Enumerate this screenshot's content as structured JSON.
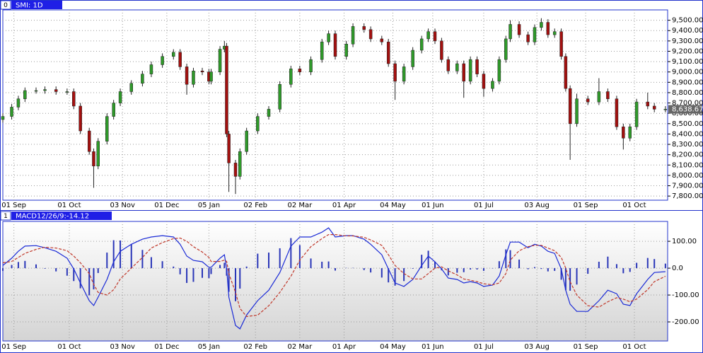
{
  "chart_data": [
    {
      "type": "candlestick",
      "panel": "0",
      "title": "SMI: 1D",
      "x": [
        0,
        4,
        7,
        10,
        15,
        19,
        24,
        29,
        32,
        35,
        39,
        41,
        43,
        47,
        50,
        53,
        58,
        63,
        67,
        72,
        77,
        80,
        83,
        86,
        90,
        93,
        94,
        98,
        100,
        101,
        102,
        105,
        107,
        110,
        115,
        120,
        125,
        130,
        134,
        139,
        144,
        147,
        150,
        155,
        158,
        163,
        166,
        171,
        174,
        177,
        181,
        185,
        189,
        192,
        195,
        198,
        201,
        205,
        208,
        211,
        214,
        217,
        221,
        224,
        227,
        229,
        233,
        237,
        240,
        243,
        246,
        249,
        252,
        254,
        256,
        259,
        264,
        269,
        273,
        277,
        280,
        283,
        286,
        291,
        294,
        299
      ],
      "open": [
        8540,
        8570,
        8660,
        8740,
        8820,
        8820,
        8830,
        8810,
        8810,
        8670,
        8430,
        8230,
        8090,
        8330,
        8570,
        8700,
        8810,
        8890,
        8980,
        9070,
        9150,
        9190,
        9050,
        8880,
        9010,
        9000,
        8910,
        9000,
        9220,
        9250,
        8400,
        8120,
        7990,
        8230,
        8430,
        8570,
        8640,
        8880,
        9030,
        9000,
        9120,
        9290,
        9370,
        9150,
        9270,
        9440,
        9410,
        9320,
        9290,
        9080,
        8910,
        9050,
        9210,
        9320,
        9390,
        9300,
        9120,
        9010,
        9080,
        8910,
        9120,
        8980,
        8840,
        8910,
        9120,
        9320,
        9460,
        9360,
        9290,
        9430,
        9480,
        9360,
        9390,
        9150,
        8840,
        8500,
        8740,
        8710,
        8810,
        8740,
        8470,
        8360,
        8470,
        8710,
        8670,
        8640
      ],
      "high": [
        8600,
        8690,
        8770,
        8850,
        8850,
        8860,
        8860,
        8840,
        8840,
        8700,
        8460,
        8260,
        8360,
        8600,
        8730,
        8840,
        8920,
        9010,
        9100,
        9180,
        9220,
        9220,
        9080,
        9040,
        9040,
        9030,
        9030,
        9250,
        9300,
        9280,
        8430,
        8150,
        8260,
        8460,
        8600,
        8670,
        8910,
        9060,
        9060,
        9150,
        9320,
        9400,
        9400,
        9300,
        9470,
        9470,
        9440,
        9350,
        9320,
        9110,
        9080,
        9240,
        9350,
        9420,
        9420,
        9330,
        9150,
        9110,
        9110,
        9150,
        9150,
        9010,
        8940,
        9150,
        9350,
        9500,
        9490,
        9390,
        9460,
        9520,
        9510,
        9420,
        9420,
        9180,
        8870,
        8790,
        8770,
        8940,
        8840,
        8770,
        8500,
        8500,
        8740,
        8800,
        8700,
        8670
      ],
      "low": [
        8510,
        8540,
        8630,
        8710,
        8790,
        8790,
        8780,
        8780,
        8640,
        8400,
        8200,
        7880,
        8060,
        8300,
        8540,
        8670,
        8780,
        8860,
        8950,
        9040,
        9120,
        9020,
        8780,
        8850,
        8970,
        8880,
        8880,
        8970,
        9190,
        8370,
        7840,
        7820,
        7960,
        8200,
        8400,
        8540,
        8610,
        8850,
        8970,
        8970,
        9090,
        9260,
        9120,
        9120,
        9240,
        9380,
        9290,
        9260,
        9050,
        8730,
        8880,
        9020,
        9180,
        9290,
        9270,
        9090,
        8980,
        8980,
        8750,
        8880,
        8950,
        8760,
        8810,
        8880,
        9090,
        9290,
        9330,
        9260,
        9260,
        9400,
        9330,
        9330,
        9120,
        8810,
        8150,
        8470,
        8680,
        8680,
        8710,
        8440,
        8250,
        8330,
        8440,
        8640,
        8610,
        8610
      ],
      "close": [
        8570,
        8660,
        8740,
        8820,
        8820,
        8830,
        8810,
        8810,
        8670,
        8430,
        8230,
        8090,
        8330,
        8570,
        8700,
        8810,
        8890,
        8980,
        9070,
        9150,
        9190,
        9050,
        8880,
        9010,
        9000,
        8910,
        9000,
        9220,
        9250,
        8400,
        8120,
        7990,
        8230,
        8430,
        8570,
        8640,
        8880,
        9030,
        9000,
        9120,
        9290,
        9370,
        9150,
        9270,
        9440,
        9410,
        9320,
        9290,
        9080,
        8910,
        9050,
        9210,
        9320,
        9390,
        9300,
        9120,
        9010,
        9080,
        8910,
        9120,
        8980,
        8840,
        8910,
        9120,
        9320,
        9460,
        9360,
        9290,
        9430,
        9480,
        9360,
        9390,
        9150,
        8840,
        8500,
        8740,
        8710,
        8810,
        8740,
        8470,
        8360,
        8470,
        8710,
        8670,
        8640,
        8640
      ],
      "up_color": "#2f9a2a",
      "down_color": "#a3100f",
      "wick_color": "#222222",
      "xlim": [
        0,
        300
      ],
      "ylim": [
        7760,
        9600
      ],
      "xticks": [
        {
          "value": 5,
          "label": "01 Sep"
        },
        {
          "value": 30,
          "label": "01 Oct"
        },
        {
          "value": 54,
          "label": "03 Nov"
        },
        {
          "value": 74,
          "label": "01 Dec"
        },
        {
          "value": 93,
          "label": "05 Jan"
        },
        {
          "value": 114,
          "label": "02 Feb"
        },
        {
          "value": 134,
          "label": "02 Mar"
        },
        {
          "value": 154,
          "label": "01 Apr"
        },
        {
          "value": 176,
          "label": "04 May"
        },
        {
          "value": 194,
          "label": "01 Jun"
        },
        {
          "value": 217,
          "label": "01 Jul"
        },
        {
          "value": 241,
          "label": "03 Aug"
        },
        {
          "value": 263,
          "label": "01 Sep"
        },
        {
          "value": 285,
          "label": "01 Oct"
        }
      ],
      "yticks": [
        {
          "value": 7800,
          "label": "7,800.00"
        },
        {
          "value": 7900,
          "label": "7,900.00"
        },
        {
          "value": 8000,
          "label": "8,000.00"
        },
        {
          "value": 8100,
          "label": "8,100.00"
        },
        {
          "value": 8200,
          "label": "8,200.00"
        },
        {
          "value": 8300,
          "label": "8,300.00"
        },
        {
          "value": 8400,
          "label": "8,400.00"
        },
        {
          "value": 8500,
          "label": "8,500.00"
        },
        {
          "value": 8600,
          "label": "8,600.00"
        },
        {
          "value": 8700,
          "label": "8,700.00"
        },
        {
          "value": 8800,
          "label": "8,800.00"
        },
        {
          "value": 8900,
          "label": "8,900.00"
        },
        {
          "value": 9000,
          "label": "9,000.00"
        },
        {
          "value": 9100,
          "label": "9,100.00"
        },
        {
          "value": 9200,
          "label": "9,200.00"
        },
        {
          "value": 9300,
          "label": "9,300.00"
        },
        {
          "value": 9400,
          "label": "9,400.00"
        },
        {
          "value": 9500,
          "label": "9,500.00"
        }
      ],
      "grid": true,
      "last_price": {
        "value": 8638.67,
        "label": "8,638.67"
      }
    },
    {
      "type": "macd",
      "panel": "1",
      "title": "MACD12/26/9:-14.12",
      "x": [
        0,
        4,
        7,
        10,
        15,
        19,
        24,
        29,
        32,
        35,
        39,
        41,
        43,
        47,
        50,
        53,
        58,
        63,
        67,
        72,
        77,
        80,
        83,
        86,
        90,
        93,
        94,
        98,
        100,
        101,
        102,
        105,
        107,
        110,
        115,
        120,
        125,
        130,
        134,
        139,
        144,
        147,
        150,
        155,
        158,
        163,
        166,
        171,
        174,
        177,
        181,
        185,
        189,
        192,
        195,
        198,
        201,
        205,
        208,
        211,
        214,
        217,
        221,
        224,
        227,
        229,
        233,
        237,
        240,
        243,
        246,
        249,
        252,
        254,
        256,
        259,
        264,
        269,
        273,
        277,
        280,
        283,
        286,
        291,
        294,
        299
      ],
      "series": [
        {
          "color": "#1a2ad6",
          "dashed": false,
          "mark": "line",
          "values": [
            10,
            37,
            63,
            82,
            84,
            76,
            63,
            37,
            -3,
            -55,
            -121,
            -139,
            -108,
            -42,
            24,
            63,
            89,
            108,
            116,
            121,
            116,
            89,
            45,
            29,
            24,
            3,
            3,
            37,
            50,
            -3,
            -108,
            -213,
            -226,
            -174,
            -121,
            -82,
            -16,
            82,
            116,
            116,
            134,
            150,
            116,
            121,
            121,
            108,
            89,
            50,
            -3,
            -55,
            -68,
            -42,
            10,
            45,
            24,
            -3,
            -37,
            -42,
            -55,
            -50,
            -55,
            -68,
            -63,
            -29,
            50,
            97,
            97,
            76,
            89,
            82,
            63,
            55,
            -3,
            -82,
            -134,
            -161,
            -161,
            -121,
            -82,
            -95,
            -134,
            -139,
            -95,
            -42,
            -16,
            -13
          ]
        },
        {
          "color": "#c0392b",
          "dashed": true,
          "mark": "line",
          "values": [
            20,
            25,
            40,
            55,
            70,
            78,
            75,
            65,
            45,
            20,
            -20,
            -60,
            -90,
            -100,
            -80,
            -40,
            0,
            40,
            75,
            95,
            110,
            112,
            100,
            80,
            60,
            40,
            25,
            25,
            30,
            25,
            -20,
            -90,
            -150,
            -180,
            -175,
            -140,
            -90,
            -30,
            30,
            80,
            110,
            125,
            125,
            120,
            120,
            115,
            105,
            85,
            50,
            10,
            -20,
            -40,
            -40,
            -20,
            0,
            5,
            -10,
            -25,
            -40,
            -45,
            -50,
            -58,
            -62,
            -55,
            -20,
            30,
            65,
            80,
            85,
            85,
            75,
            65,
            40,
            0,
            -50,
            -100,
            -140,
            -145,
            -125,
            -110,
            -115,
            -125,
            -115,
            -80,
            -50,
            -30
          ]
        },
        {
          "color": "#2a36b8",
          "dashed": false,
          "mark": "bar",
          "values": [
            -10,
            12,
            23,
            27,
            14,
            -2,
            -12,
            -28,
            -48,
            -75,
            -101,
            -79,
            -18,
            58,
            104,
            103,
            89,
            68,
            41,
            26,
            6,
            -23,
            -55,
            -51,
            -36,
            -37,
            -22,
            12,
            20,
            -28,
            -88,
            -123,
            -76,
            6,
            54,
            58,
            74,
            112,
            86,
            36,
            24,
            25,
            -9,
            1,
            1,
            -7,
            -16,
            -35,
            -53,
            -65,
            -48,
            -2,
            50,
            65,
            24,
            -8,
            -27,
            -17,
            -15,
            -5,
            -5,
            -10,
            -1,
            26,
            70,
            67,
            32,
            -4,
            4,
            -3,
            -12,
            -10,
            -43,
            -82,
            -84,
            -61,
            -21,
            24,
            43,
            15,
            -19,
            -14,
            20,
            38,
            34,
            17
          ]
        }
      ],
      "xlim": [
        0,
        300
      ],
      "ylim": [
        -271,
        174
      ],
      "xticks": [
        {
          "value": 5,
          "label": "01 Sep"
        },
        {
          "value": 30,
          "label": "01 Oct"
        },
        {
          "value": 54,
          "label": "03 Nov"
        },
        {
          "value": 74,
          "label": "01 Dec"
        },
        {
          "value": 93,
          "label": "05 Jan"
        },
        {
          "value": 114,
          "label": "02 Feb"
        },
        {
          "value": 134,
          "label": "02 Mar"
        },
        {
          "value": 154,
          "label": "01 Apr"
        },
        {
          "value": 176,
          "label": "04 May"
        },
        {
          "value": 194,
          "label": "01 Jun"
        },
        {
          "value": 217,
          "label": "01 Jul"
        },
        {
          "value": 241,
          "label": "03 Aug"
        },
        {
          "value": 263,
          "label": "01 Sep"
        },
        {
          "value": 285,
          "label": "01 Oct"
        }
      ],
      "yticks": [
        {
          "value": 100,
          "label": "100.00"
        },
        {
          "value": 0,
          "label": "0.0"
        },
        {
          "value": -100,
          "label": "-100.00"
        },
        {
          "value": -200,
          "label": "-200.00"
        }
      ],
      "grid": true
    }
  ]
}
